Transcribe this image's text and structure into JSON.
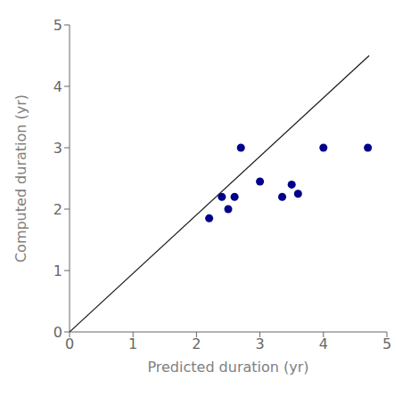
{
  "chart_data": {
    "type": "scatter",
    "xlabel": "Predicted duration (yr)",
    "ylabel": "Computed duration (yr)",
    "xlim": [
      0,
      5
    ],
    "ylim": [
      0,
      5
    ],
    "xticks": [
      0,
      1,
      2,
      3,
      4,
      5
    ],
    "yticks": [
      0,
      1,
      2,
      3,
      4,
      5
    ],
    "grid": false,
    "series": [
      {
        "type": "line",
        "color": "#1a1a1a",
        "x": [
          0,
          4.72
        ],
        "values": [
          0,
          4.5
        ]
      },
      {
        "type": "scatter",
        "color": "#00008B",
        "x": [
          2.2,
          2.4,
          2.5,
          2.6,
          2.7,
          3.0,
          3.35,
          3.5,
          3.6,
          4.0,
          4.7
        ],
        "values": [
          1.85,
          2.2,
          2.0,
          2.2,
          3.0,
          2.45,
          2.2,
          2.4,
          2.25,
          3.0,
          3.0
        ]
      }
    ]
  }
}
